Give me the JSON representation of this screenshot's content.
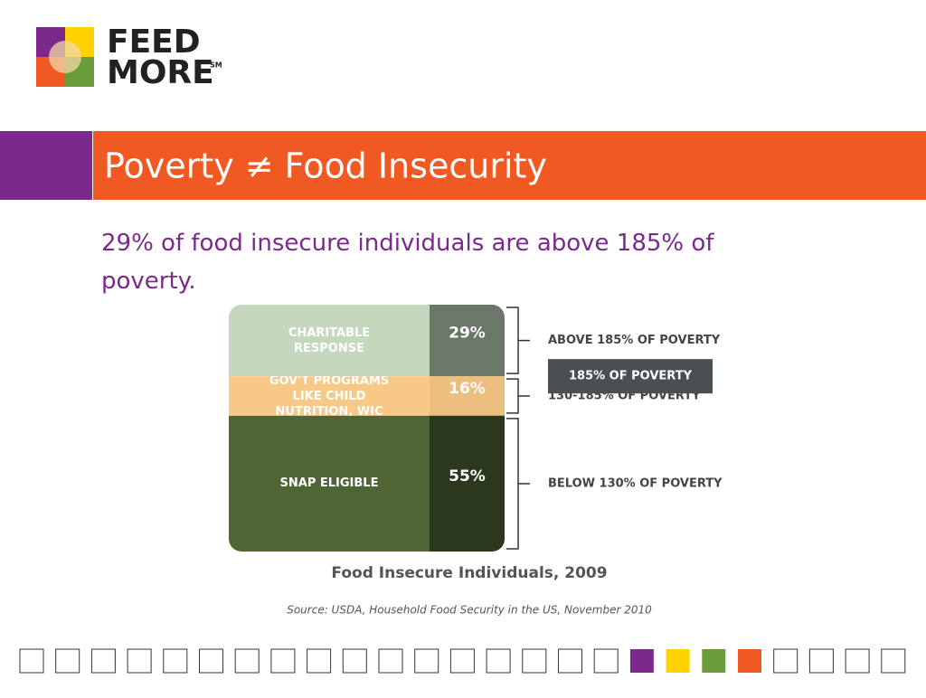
{
  "logo": {
    "line1": "FEED",
    "line2": "MORE",
    "mark": "SM"
  },
  "title": "Poverty ≠ Food Insecurity",
  "subtitle": "29% of food insecure individuals are above 185% of poverty.",
  "chart_data": {
    "type": "stacked_bar",
    "title": "Food Insecure Individuals, 2009",
    "annotation": "185% OF POVERTY",
    "series": [
      {
        "name": "CHARITABLE RESPONSE",
        "values": [
          29
        ],
        "value_labels": [
          "29%"
        ],
        "color": "#c3d8bd",
        "range_label": "ABOVE 185% OF POVERTY"
      },
      {
        "name": "GOV'T PROGRAMS LIKE CHILD NUTRITION, WIC",
        "values": [
          16
        ],
        "value_labels": [
          "16%"
        ],
        "color": "#f8c887",
        "range_label": "130-185% OF POVERTY"
      },
      {
        "name": "SNAP ELIGIBLE",
        "values": [
          55
        ],
        "value_labels": [
          "55%"
        ],
        "color": "#4f6535",
        "range_label": "BELOW 130% OF POVERTY"
      }
    ]
  },
  "source": "Source: USDA, Household Food Security in the US, November 2010"
}
